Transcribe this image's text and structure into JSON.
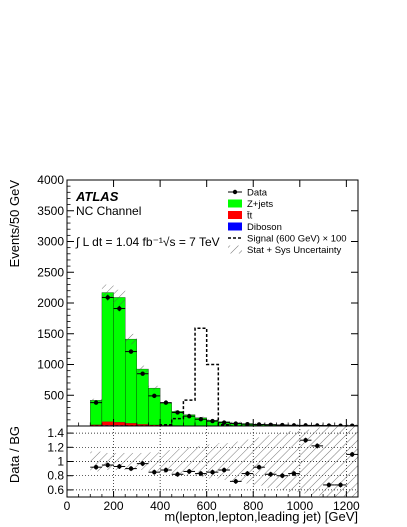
{
  "chart_data": [
    {
      "type": "bar",
      "xlabel": "m(lepton,lepton,leading jet) [GeV]",
      "ylabel": "Events/50 GeV",
      "xlim": [
        0,
        1250
      ],
      "ylim": [
        0,
        4000
      ],
      "x_ticks": [
        "0",
        "200",
        "400",
        "600",
        "800",
        "1000",
        "1200"
      ],
      "y_ticks": [
        "500",
        "1000",
        "1500",
        "2000",
        "2500",
        "3000",
        "3500",
        "4000"
      ],
      "annotations": {
        "experiment": "ATLAS",
        "channel": "NC Channel",
        "lumi_line": "∫ L dt = 1.04 fb⁻¹√s = 7 TeV"
      },
      "legend": {
        "placement": "top-right",
        "entries": [
          {
            "label": "Data",
            "style": "marker"
          },
          {
            "label": "Z+jets",
            "style": "fill",
            "color": "#00ff00"
          },
          {
            "label": "t̄t",
            "style": "fill",
            "color": "#ff0000"
          },
          {
            "label": "Diboson",
            "style": "fill",
            "color": "#0000ff"
          },
          {
            "label": "Signal (600 GeV) × 100",
            "style": "dashed"
          },
          {
            "label": "Stat + Sys Uncertainty",
            "style": "hatch"
          }
        ]
      },
      "bin_low_edges": [
        100,
        150,
        200,
        250,
        300,
        350,
        400,
        450,
        500,
        550,
        600,
        650,
        700,
        750,
        800,
        850,
        900,
        950,
        1000,
        1050,
        1100,
        1150,
        1200
      ],
      "bin_width": 50,
      "series": [
        {
          "name": "Z+jets",
          "values": [
            400,
            2100,
            2030,
            1370,
            900,
            600,
            360,
            230,
            180,
            130,
            90,
            70,
            50,
            40,
            30,
            25,
            20,
            15,
            12,
            10,
            8,
            6,
            5
          ]
        },
        {
          "name": "t̄t",
          "values": [
            15,
            60,
            50,
            35,
            20,
            12,
            8,
            5,
            3,
            2,
            1,
            1,
            0,
            0,
            0,
            0,
            0,
            0,
            0,
            0,
            0,
            0,
            0
          ]
        },
        {
          "name": "Diboson",
          "values": [
            3,
            10,
            10,
            8,
            6,
            4,
            3,
            2,
            1,
            1,
            1,
            0,
            0,
            0,
            0,
            0,
            0,
            0,
            0,
            0,
            0,
            0,
            0
          ]
        },
        {
          "name": "Data",
          "x": [
            125,
            175,
            225,
            275,
            325,
            375,
            425,
            475,
            525,
            575,
            625,
            675,
            725,
            775,
            825,
            875,
            925,
            975,
            1025,
            1075,
            1125,
            1175,
            1225
          ],
          "values": [
            380,
            2090,
            1910,
            1210,
            850,
            490,
            380,
            220,
            160,
            110,
            80,
            55,
            40,
            30,
            25,
            20,
            15,
            10,
            10,
            8,
            6,
            4,
            5
          ]
        },
        {
          "name": "Signal (600 GeV) × 100",
          "values": [
            0,
            0,
            0,
            0,
            0,
            0,
            20,
            120,
            420,
            1590,
            1000,
            20,
            0,
            0,
            0,
            0,
            0,
            0,
            0,
            0,
            0,
            0,
            0
          ]
        }
      ]
    },
    {
      "type": "scatter",
      "xlabel": "m(lepton,lepton,leading jet) [GeV]",
      "ylabel": "Data / BG",
      "xlim": [
        0,
        1250
      ],
      "ylim": [
        0.5,
        1.5
      ],
      "y_ticks": [
        "0.6",
        "0.8",
        "1",
        "1.2",
        "1.4"
      ],
      "grid": true,
      "x": [
        125,
        175,
        225,
        275,
        325,
        375,
        425,
        475,
        525,
        575,
        625,
        675,
        725,
        775,
        825,
        875,
        925,
        975,
        1025,
        1075,
        1125,
        1175,
        1225
      ],
      "values": [
        0.92,
        0.95,
        0.93,
        0.9,
        0.97,
        0.85,
        0.88,
        0.82,
        0.86,
        0.83,
        0.85,
        0.88,
        0.72,
        0.83,
        0.92,
        0.82,
        0.8,
        0.83,
        1.3,
        1.22,
        0.67,
        0.67,
        1.1
      ],
      "uncertainty_lower": [
        0.86,
        0.88,
        0.88,
        0.88,
        0.88,
        0.87,
        0.84,
        0.82,
        0.8,
        0.78,
        0.76,
        0.74,
        0.72,
        0.69,
        0.66,
        0.63,
        0.6,
        0.57,
        0.55,
        0.52,
        0.5,
        0.5,
        0.5
      ],
      "uncertainty_upper": [
        1.14,
        1.12,
        1.12,
        1.12,
        1.12,
        1.13,
        1.16,
        1.18,
        1.2,
        1.22,
        1.24,
        1.26,
        1.28,
        1.31,
        1.34,
        1.37,
        1.4,
        1.43,
        1.45,
        1.48,
        1.5,
        1.5,
        1.5
      ]
    }
  ]
}
